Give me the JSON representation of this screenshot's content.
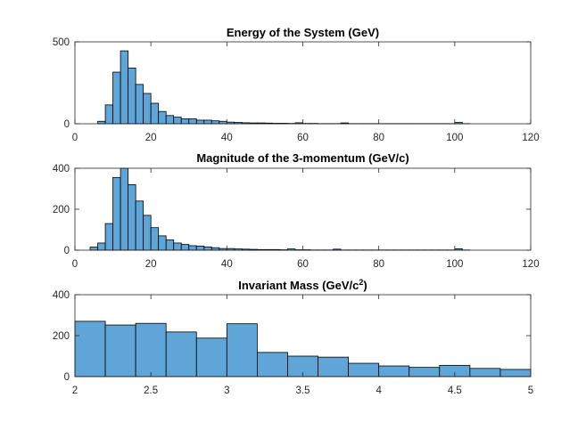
{
  "chart_data": [
    {
      "type": "bar",
      "title": "Energy of the System (GeV)",
      "title_superscript": "",
      "title_suffix": "",
      "xlim": [
        0,
        120
      ],
      "ylim": [
        0,
        500
      ],
      "xticks": [
        "0",
        "20",
        "40",
        "60",
        "80",
        "100",
        "120"
      ],
      "yticks": [
        "0",
        "500"
      ],
      "bin_width": 2,
      "bin_starts": [
        6,
        8,
        10,
        12,
        14,
        16,
        18,
        20,
        22,
        24,
        26,
        28,
        30,
        32,
        34,
        36,
        38,
        40,
        42,
        44,
        46,
        48,
        50,
        52,
        54,
        56,
        58,
        60,
        62,
        64,
        66,
        68,
        70,
        72,
        74,
        76,
        78,
        80,
        82,
        84,
        86,
        88,
        90,
        92,
        94,
        96,
        98,
        100,
        102
      ],
      "values": [
        15,
        115,
        315,
        445,
        340,
        240,
        185,
        125,
        75,
        50,
        40,
        30,
        30,
        22,
        22,
        18,
        15,
        10,
        8,
        6,
        5,
        5,
        4,
        3,
        3,
        2,
        6,
        2,
        2,
        1,
        1,
        1,
        5,
        1,
        1,
        1,
        1,
        1,
        1,
        1,
        1,
        1,
        1,
        1,
        1,
        1,
        1,
        8,
        1
      ],
      "bar_color": "#5fa5d8",
      "grid": false
    },
    {
      "type": "bar",
      "title": "Magnitude of the 3-momentum (GeV/c)",
      "title_superscript": "",
      "title_suffix": "",
      "xlim": [
        0,
        120
      ],
      "ylim": [
        0,
        400
      ],
      "xticks": [
        "0",
        "20",
        "40",
        "60",
        "80",
        "100",
        "120"
      ],
      "yticks": [
        "0",
        "200",
        "400"
      ],
      "bin_width": 2,
      "bin_starts": [
        4,
        6,
        8,
        10,
        12,
        14,
        16,
        18,
        20,
        22,
        24,
        26,
        28,
        30,
        32,
        34,
        36,
        38,
        40,
        42,
        44,
        46,
        48,
        50,
        52,
        54,
        56,
        58,
        60,
        62,
        64,
        66,
        68,
        70,
        72,
        74,
        76,
        78,
        80,
        82,
        84,
        86,
        88,
        90,
        92,
        94,
        96,
        98,
        100,
        102
      ],
      "values": [
        15,
        35,
        130,
        355,
        400,
        320,
        240,
        170,
        110,
        70,
        50,
        35,
        28,
        22,
        20,
        16,
        12,
        8,
        8,
        6,
        5,
        4,
        3,
        3,
        3,
        2,
        6,
        2,
        2,
        1,
        1,
        1,
        5,
        1,
        1,
        1,
        1,
        1,
        1,
        1,
        1,
        1,
        1,
        1,
        1,
        1,
        1,
        1,
        7,
        1
      ],
      "bar_color": "#5fa5d8",
      "grid": false
    },
    {
      "type": "bar",
      "title": "Invariant Mass (GeV/c",
      "title_superscript": "2",
      "title_suffix": ")",
      "xlim": [
        2,
        5
      ],
      "ylim": [
        0,
        400
      ],
      "xticks": [
        "2",
        "2.5",
        "3",
        "3.5",
        "4",
        "4.5",
        "5"
      ],
      "yticks": [
        "0",
        "200",
        "400"
      ],
      "bin_width": 0.2,
      "bin_starts": [
        2.0,
        2.2,
        2.4,
        2.6,
        2.8,
        3.0,
        3.2,
        3.4,
        3.6,
        3.8,
        4.0,
        4.2,
        4.4,
        4.6,
        4.8
      ],
      "values": [
        270,
        252,
        260,
        218,
        188,
        258,
        118,
        100,
        95,
        65,
        52,
        45,
        55,
        40,
        35
      ],
      "bar_color": "#5fa5d8",
      "grid": false
    }
  ]
}
